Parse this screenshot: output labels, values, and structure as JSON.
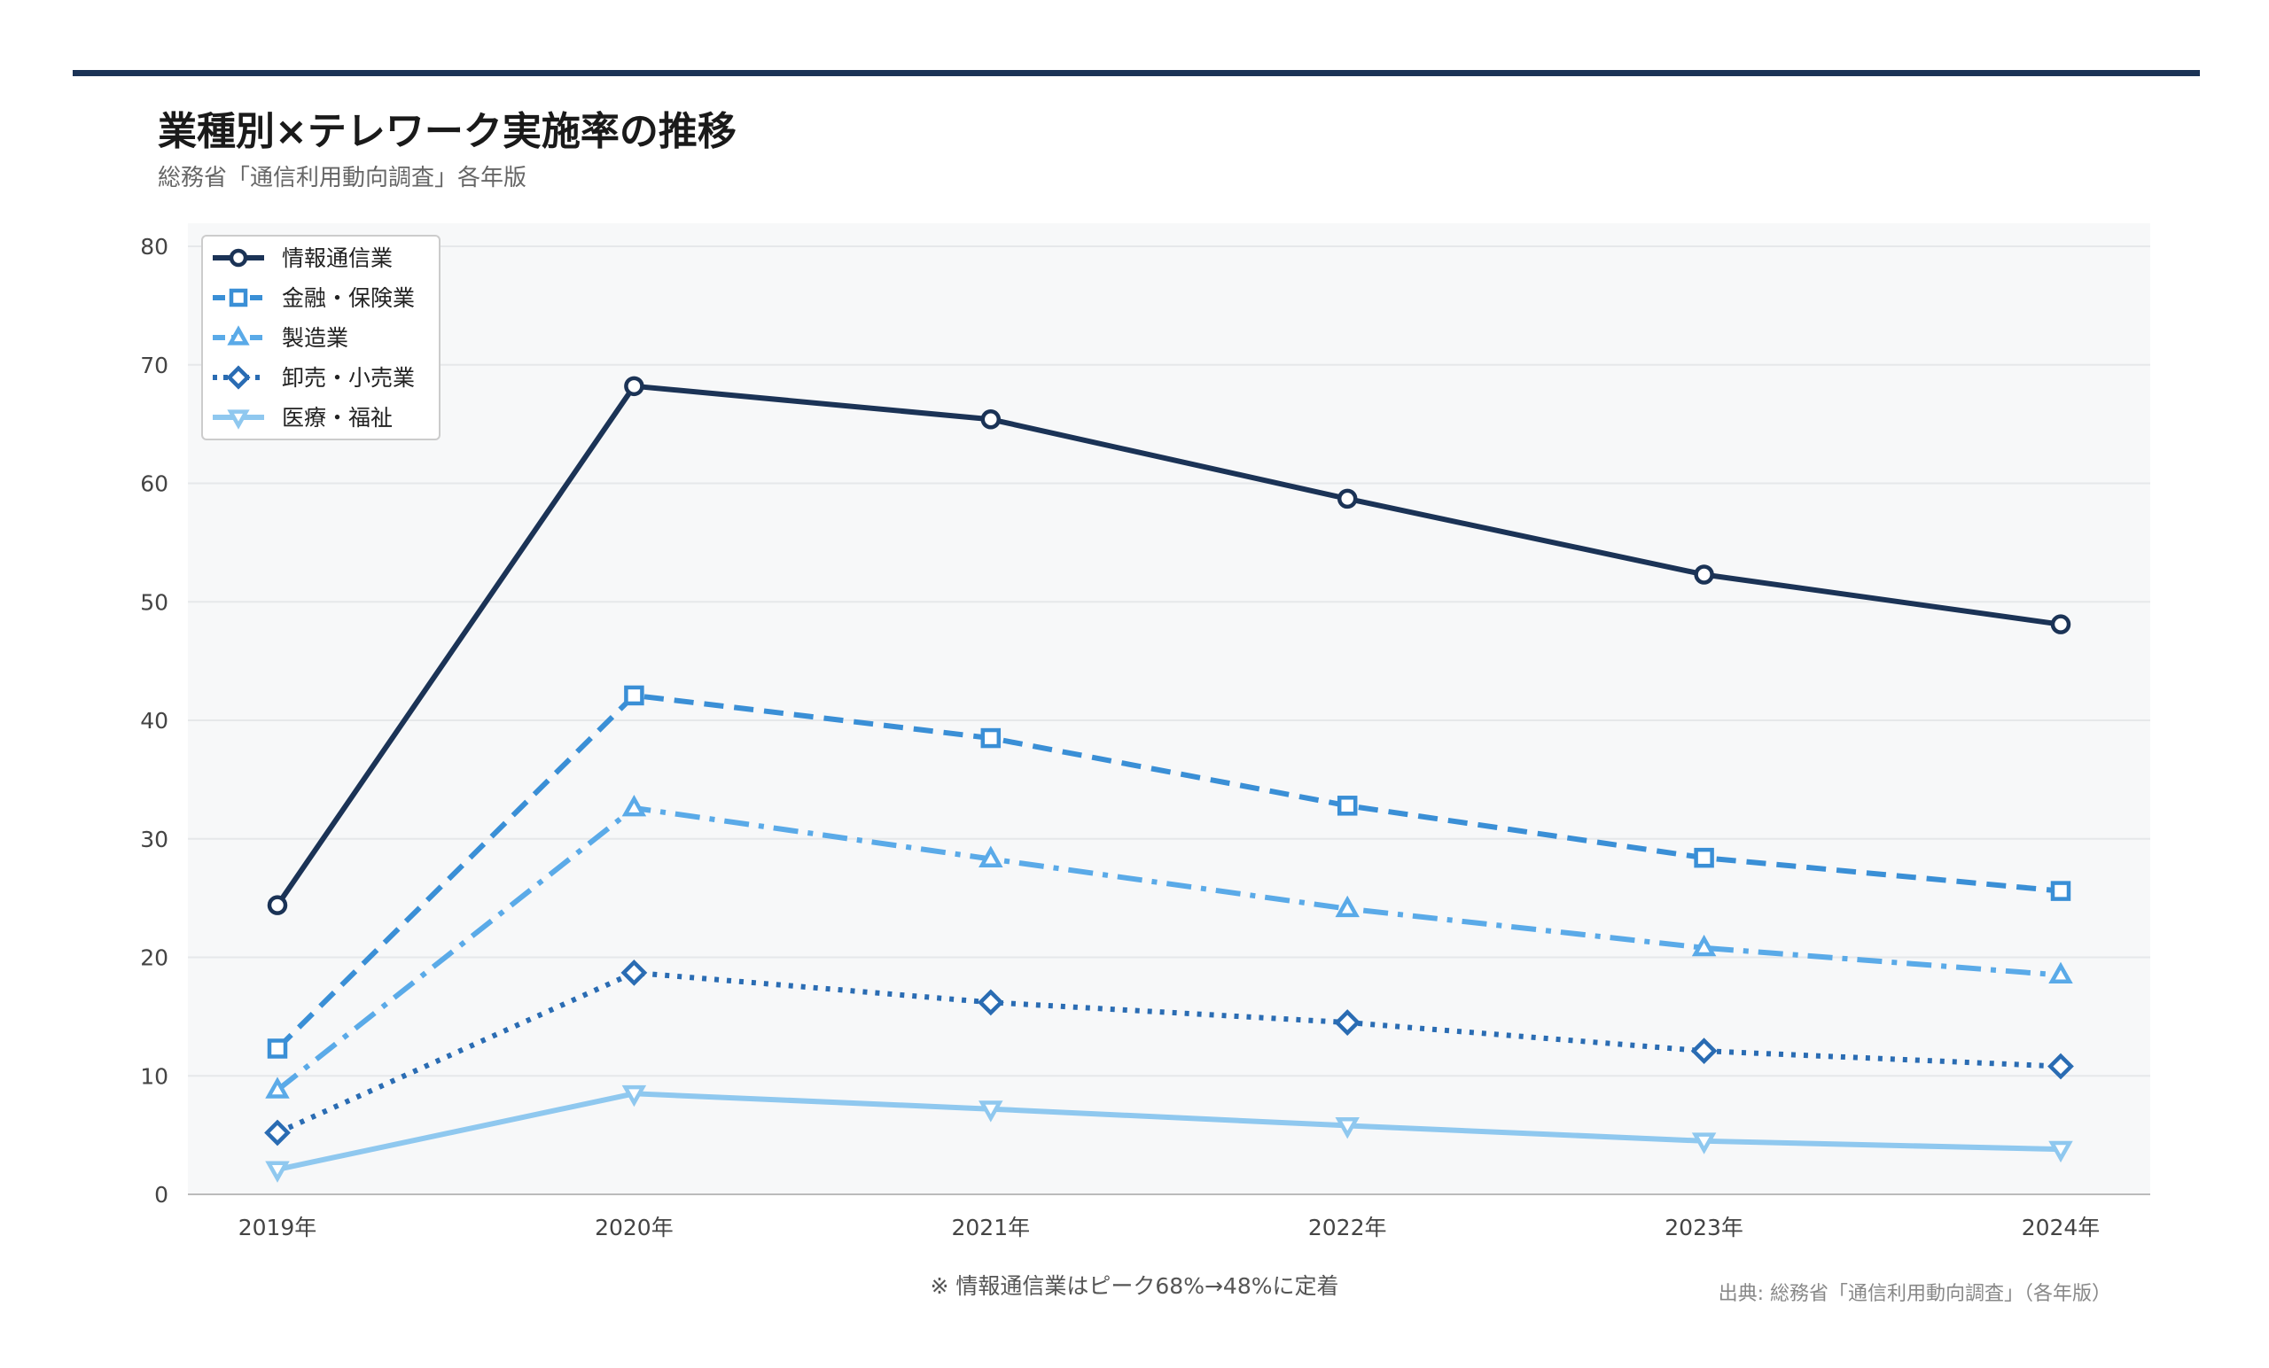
{
  "header": {
    "title": "業種別×テレワーク実施率の推移",
    "subtitle": "総務省「通信利用動向調査」各年版"
  },
  "footer": {
    "note": "※ 情報通信業はピーク68%→48%に定着",
    "source": "出典: 総務省「通信利用動向調査」（各年版）"
  },
  "chart_data": {
    "type": "line",
    "title": "業種別×テレワーク実施率の推移",
    "subtitle": "総務省「通信利用動向調査」各年版",
    "categories": [
      "2019年",
      "2020年",
      "2021年",
      "2022年",
      "2023年",
      "2024年"
    ],
    "ylim": [
      0,
      80
    ],
    "yticks": [
      0,
      10,
      20,
      30,
      40,
      50,
      60,
      70,
      80
    ],
    "grid": true,
    "legend_position": "top-left",
    "series": [
      {
        "name": "情報通信業",
        "values": [
          24.4,
          68.2,
          65.4,
          58.7,
          52.3,
          48.1
        ],
        "color": "#1b3356",
        "dash": "solid",
        "marker": "circle"
      },
      {
        "name": "金融・保険業",
        "values": [
          12.3,
          42.1,
          38.5,
          32.8,
          28.4,
          25.6
        ],
        "color": "#3a8fd6",
        "dash": "dashed",
        "marker": "square"
      },
      {
        "name": "製造業",
        "values": [
          8.8,
          32.6,
          28.3,
          24.1,
          20.8,
          18.5
        ],
        "color": "#5aaae8",
        "dash": "dashdot",
        "marker": "triangle-up"
      },
      {
        "name": "卸売・小売業",
        "values": [
          5.2,
          18.7,
          16.2,
          14.5,
          12.1,
          10.8
        ],
        "color": "#2a6cb3",
        "dash": "dotted",
        "marker": "diamond"
      },
      {
        "name": "医療・福祉",
        "values": [
          2.1,
          8.5,
          7.2,
          5.8,
          4.5,
          3.8
        ],
        "color": "#8fc8ef",
        "dash": "solid",
        "marker": "triangle-down"
      }
    ]
  }
}
